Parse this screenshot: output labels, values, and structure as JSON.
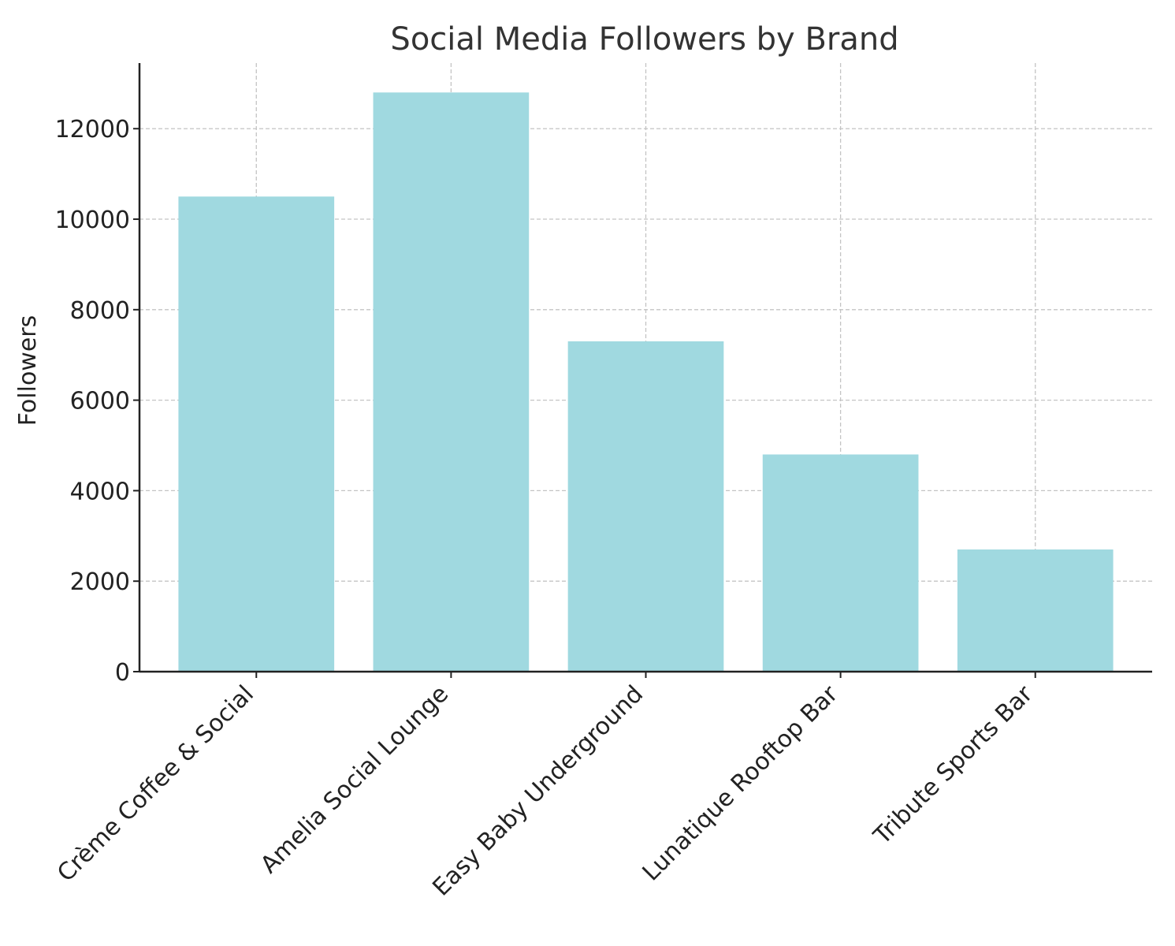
{
  "chart_data": {
    "type": "bar",
    "title": "Social Media Followers by Brand",
    "xlabel": "",
    "ylabel": "Followers",
    "categories": [
      "Crème Coffee & Social",
      "Amelia Social Lounge",
      "Easy Baby Underground",
      "Lunatique Rooftop Bar",
      "Tribute Sports Bar"
    ],
    "values": [
      10500,
      12800,
      7300,
      4800,
      2700
    ],
    "ylim": [
      0,
      13450
    ],
    "yticks": [
      0,
      2000,
      4000,
      6000,
      8000,
      10000,
      12000
    ],
    "grid": true,
    "bar_color": "#a0d9e0"
  }
}
